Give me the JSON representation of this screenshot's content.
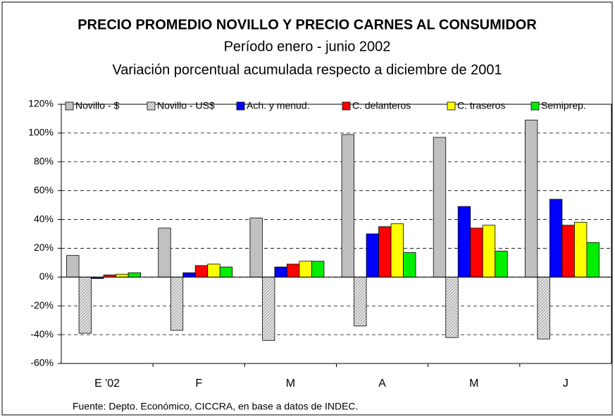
{
  "chart_data": {
    "type": "bar",
    "title": "PRECIO PROMEDIO NOVILLO Y PRECIO CARNES AL CONSUMIDOR",
    "subtitle": "Período enero - junio 2002",
    "subtitle2": "Variación porcentual acumulada respecto a diciembre de 2001",
    "note": "Fuente: Depto. Económico, CICCRA, en base a datos de INDEC.",
    "categories": [
      "E '02",
      "F",
      "M",
      "A",
      "M",
      "J"
    ],
    "series": [
      {
        "name": "Novillo - $",
        "color": "#c0c0c0",
        "values": [
          15,
          34,
          41,
          99,
          97,
          109
        ]
      },
      {
        "name": "Novillo - US$",
        "color": "#c0c0c0",
        "pattern": "hatch",
        "values": [
          -39,
          -37,
          -44,
          -34,
          -42,
          -43
        ]
      },
      {
        "name": "Ach. y menud.",
        "color": "#0000ff",
        "values": [
          -1,
          3,
          7,
          30,
          49,
          54
        ]
      },
      {
        "name": "C. delanteros",
        "color": "#ff0000",
        "values": [
          1.5,
          8,
          9,
          35,
          34,
          36
        ]
      },
      {
        "name": "C. traseros",
        "color": "#ffff00",
        "values": [
          2,
          9,
          11,
          37,
          36,
          38
        ]
      },
      {
        "name": "Semiprep.",
        "color": "#00ee00",
        "values": [
          3,
          7,
          11,
          17,
          18,
          24
        ]
      }
    ],
    "ylim": [
      -60,
      120
    ],
    "yticks": [
      {
        "value": -60,
        "label": "-60%"
      },
      {
        "value": -40,
        "label": "-40%"
      },
      {
        "value": -20,
        "label": "-20%"
      },
      {
        "value": 0,
        "label": "0%"
      },
      {
        "value": 20,
        "label": "20%"
      },
      {
        "value": 40,
        "label": "40%"
      },
      {
        "value": 60,
        "label": "60%"
      },
      {
        "value": 80,
        "label": "80%"
      },
      {
        "value": 100,
        "label": "100%"
      },
      {
        "value": 120,
        "label": "120%"
      }
    ],
    "grid": true
  }
}
